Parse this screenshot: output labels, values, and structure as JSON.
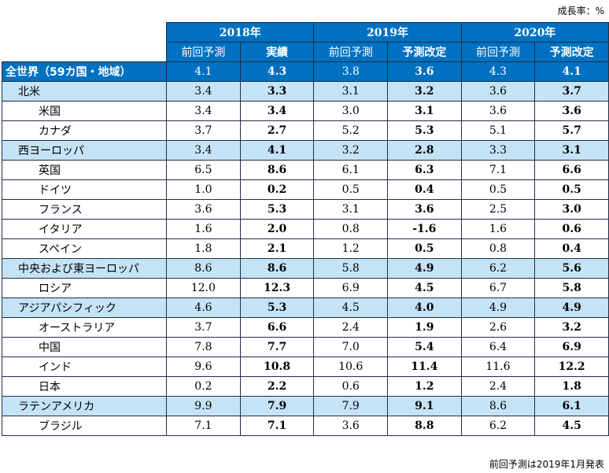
{
  "unit_note": "成長率：%",
  "footnote": "前回予測は2019年1月発表",
  "years": [
    "2018年",
    "2019年",
    "2020年"
  ],
  "subheaders": [
    "前回予測",
    "実績",
    "前回予測",
    "予測改定",
    "前回予測",
    "予測改定"
  ],
  "rows": [
    {
      "name": "全世界（59カ国・地域）",
      "level": "world",
      "values": [
        "4.1",
        "4.3",
        "3.8",
        "3.6",
        "4.3",
        "4.1"
      ]
    },
    {
      "name": "北米",
      "level": "region",
      "values": [
        "3.4",
        "3.3",
        "3.1",
        "3.2",
        "3.6",
        "3.7"
      ]
    },
    {
      "name": "米国",
      "level": "country",
      "values": [
        "3.4",
        "3.4",
        "3.0",
        "3.1",
        "3.6",
        "3.6"
      ]
    },
    {
      "name": "カナダ",
      "level": "country",
      "values": [
        "3.7",
        "2.7",
        "5.2",
        "5.3",
        "5.1",
        "5.7"
      ]
    },
    {
      "name": "西ヨーロッパ",
      "level": "region",
      "values": [
        "3.4",
        "4.1",
        "3.2",
        "2.8",
        "3.3",
        "3.1"
      ]
    },
    {
      "name": "英国",
      "level": "country",
      "values": [
        "6.5",
        "8.6",
        "6.1",
        "6.3",
        "7.1",
        "6.6"
      ]
    },
    {
      "name": "ドイツ",
      "level": "country",
      "values": [
        "1.0",
        "0.2",
        "0.5",
        "0.4",
        "0.5",
        "0.5"
      ]
    },
    {
      "name": "フランス",
      "level": "country",
      "values": [
        "3.6",
        "5.3",
        "3.1",
        "3.6",
        "2.5",
        "3.0"
      ]
    },
    {
      "name": "イタリア",
      "level": "country",
      "values": [
        "1.6",
        "2.0",
        "0.8",
        "-1.6",
        "1.6",
        "0.6"
      ]
    },
    {
      "name": "スペイン",
      "level": "country",
      "values": [
        "1.8",
        "2.1",
        "1.2",
        "0.5",
        "0.8",
        "0.4"
      ]
    },
    {
      "name": "中央および東ヨーロッパ",
      "level": "region",
      "values": [
        "8.6",
        "8.6",
        "5.8",
        "4.9",
        "6.2",
        "5.6"
      ]
    },
    {
      "name": "ロシア",
      "level": "country",
      "values": [
        "12.0",
        "12.3",
        "6.9",
        "4.5",
        "6.7",
        "5.8"
      ]
    },
    {
      "name": "アジアパシフィック",
      "level": "region",
      "values": [
        "4.6",
        "5.3",
        "4.5",
        "4.0",
        "4.9",
        "4.9"
      ]
    },
    {
      "name": "オーストラリア",
      "level": "country",
      "values": [
        "3.7",
        "6.6",
        "2.4",
        "1.9",
        "2.6",
        "3.2"
      ]
    },
    {
      "name": "中国",
      "level": "country",
      "values": [
        "7.8",
        "7.7",
        "7.0",
        "5.4",
        "6.4",
        "6.9"
      ]
    },
    {
      "name": "インド",
      "level": "country",
      "values": [
        "9.6",
        "10.8",
        "10.6",
        "11.4",
        "11.6",
        "12.2"
      ]
    },
    {
      "name": "日本",
      "level": "country",
      "values": [
        "0.2",
        "2.2",
        "0.6",
        "1.2",
        "2.4",
        "1.8"
      ]
    },
    {
      "name": "ラテンアメリカ",
      "level": "region",
      "values": [
        "9.9",
        "7.9",
        "7.9",
        "9.1",
        "8.6",
        "6.1"
      ]
    },
    {
      "name": "ブラジル",
      "level": "country",
      "values": [
        "7.1",
        "7.1",
        "3.6",
        "8.8",
        "6.2",
        "4.5"
      ]
    }
  ]
}
